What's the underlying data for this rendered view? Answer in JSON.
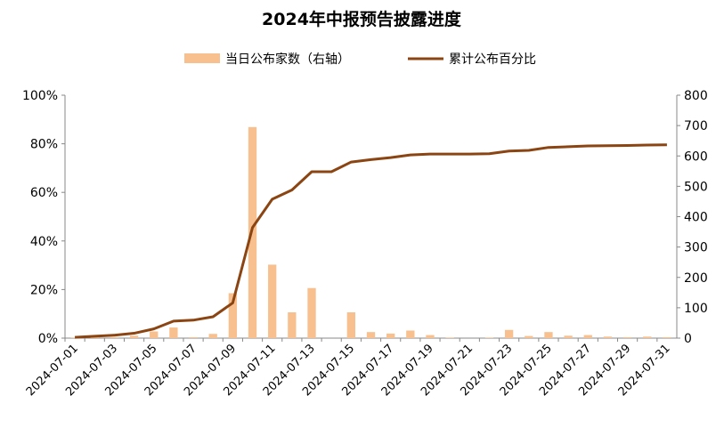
{
  "chart_data": {
    "type": "bar+line",
    "title": "2024年中报预告披露进度",
    "legend_placement": "top",
    "grid": false,
    "categories": [
      "2024-07-01",
      "2024-07-02",
      "2024-07-03",
      "2024-07-04",
      "2024-07-05",
      "2024-07-06",
      "2024-07-07",
      "2024-07-08",
      "2024-07-09",
      "2024-07-10",
      "2024-07-11",
      "2024-07-12",
      "2024-07-13",
      "2024-07-14",
      "2024-07-15",
      "2024-07-16",
      "2024-07-17",
      "2024-07-18",
      "2024-07-19",
      "2024-07-20",
      "2024-07-21",
      "2024-07-22",
      "2024-07-23",
      "2024-07-24",
      "2024-07-25",
      "2024-07-26",
      "2024-07-27",
      "2024-07-28",
      "2024-07-29",
      "2024-07-30",
      "2024-07-31"
    ],
    "x_tick_labels": [
      "2024-07-01",
      "2024-07-03",
      "2024-07-05",
      "2024-07-07",
      "2024-07-09",
      "2024-07-11",
      "2024-07-13",
      "2024-07-15",
      "2024-07-17",
      "2024-07-19",
      "2024-07-21",
      "2024-07-23",
      "2024-07-25",
      "2024-07-27",
      "2024-07-29",
      "2024-07-31"
    ],
    "series": [
      {
        "name": "当日公布家数（右轴）",
        "type": "bar",
        "axis": "right",
        "color": "#F8C08E",
        "values": [
          2,
          4,
          3,
          8,
          22,
          35,
          3,
          14,
          148,
          695,
          242,
          85,
          165,
          0,
          85,
          20,
          15,
          25,
          10,
          2,
          0,
          2,
          27,
          7,
          20,
          8,
          10,
          5,
          3,
          5,
          3
        ]
      },
      {
        "name": "累计公布百分比",
        "type": "line",
        "axis": "left",
        "color": "#8B4513",
        "values": [
          0.3,
          0.8,
          1.2,
          2.0,
          3.8,
          7.0,
          7.4,
          8.8,
          14.5,
          45.5,
          57.2,
          61.0,
          68.5,
          68.5,
          72.5,
          73.5,
          74.3,
          75.4,
          75.8,
          75.8,
          75.8,
          75.9,
          77.0,
          77.3,
          78.5,
          78.8,
          79.1,
          79.2,
          79.3,
          79.5,
          79.6
        ]
      }
    ],
    "y_left": {
      "ticks": [
        "0%",
        "20%",
        "40%",
        "60%",
        "80%",
        "100%"
      ],
      "ylim": [
        0,
        100
      ]
    },
    "y_right": {
      "ticks": [
        "0",
        "100",
        "200",
        "300",
        "400",
        "500",
        "600",
        "700",
        "800"
      ],
      "ylim": [
        0,
        800
      ]
    }
  }
}
